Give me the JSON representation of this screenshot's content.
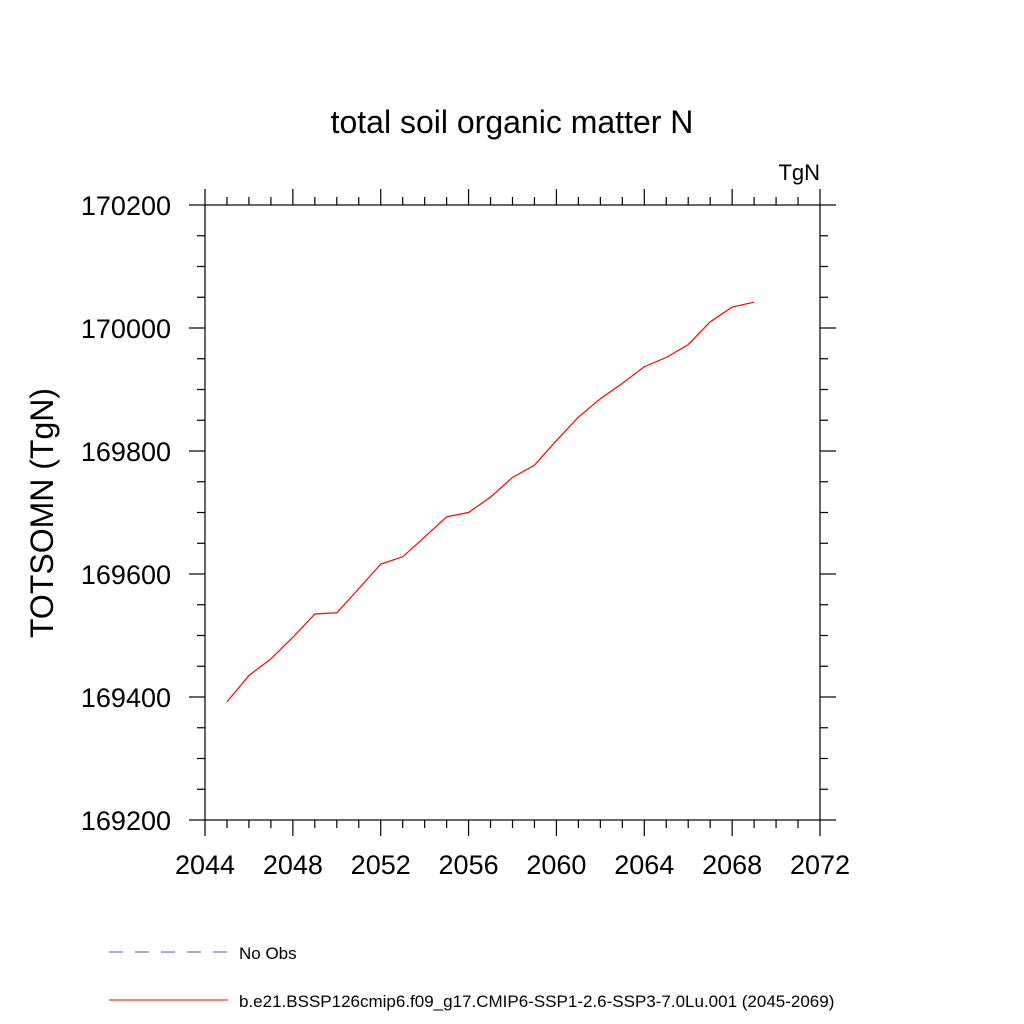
{
  "chart_data": {
    "type": "line",
    "title": "total soil organic matter N",
    "units_label": "TgN",
    "ylabel": "TOTSOMN  (TgN)",
    "xlabel": "",
    "xlim": [
      2044,
      2072
    ],
    "ylim": [
      169200,
      170200
    ],
    "xticks": [
      2044,
      2048,
      2052,
      2056,
      2060,
      2064,
      2068,
      2072
    ],
    "yticks": [
      169200,
      169400,
      169600,
      169800,
      170000,
      170200
    ],
    "grid": false,
    "legend_position": "bottom-left",
    "legend": [
      {
        "label": "No Obs",
        "color": "#5a4fb0",
        "dash": "dashed"
      },
      {
        "label": "b.e21.BSSP126cmip6.f09_g17.CMIP6-SSP1-2.6-SSP3-7.0Lu.001 (2045-2069)",
        "color": "#ff0000",
        "dash": "solid"
      }
    ],
    "series": [
      {
        "name": "b.e21.BSSP126cmip6.f09_g17.CMIP6-SSP1-2.6-SSP3-7.0Lu.001 (2045-2069)",
        "color": "#ff0000",
        "x": [
          2045,
          2046,
          2047,
          2048,
          2049,
          2050,
          2051,
          2052,
          2053,
          2054,
          2055,
          2056,
          2057,
          2058,
          2059,
          2060,
          2061,
          2062,
          2063,
          2064,
          2065,
          2066,
          2067,
          2068,
          2069
        ],
        "y": [
          169392,
          169435,
          169462,
          169497,
          169535,
          169537,
          169576,
          169616,
          169628,
          169660,
          169693,
          169700,
          169725,
          169757,
          169777,
          169817,
          169855,
          169885,
          169910,
          169937,
          169952,
          169973,
          170010,
          170034,
          170042
        ]
      }
    ]
  }
}
